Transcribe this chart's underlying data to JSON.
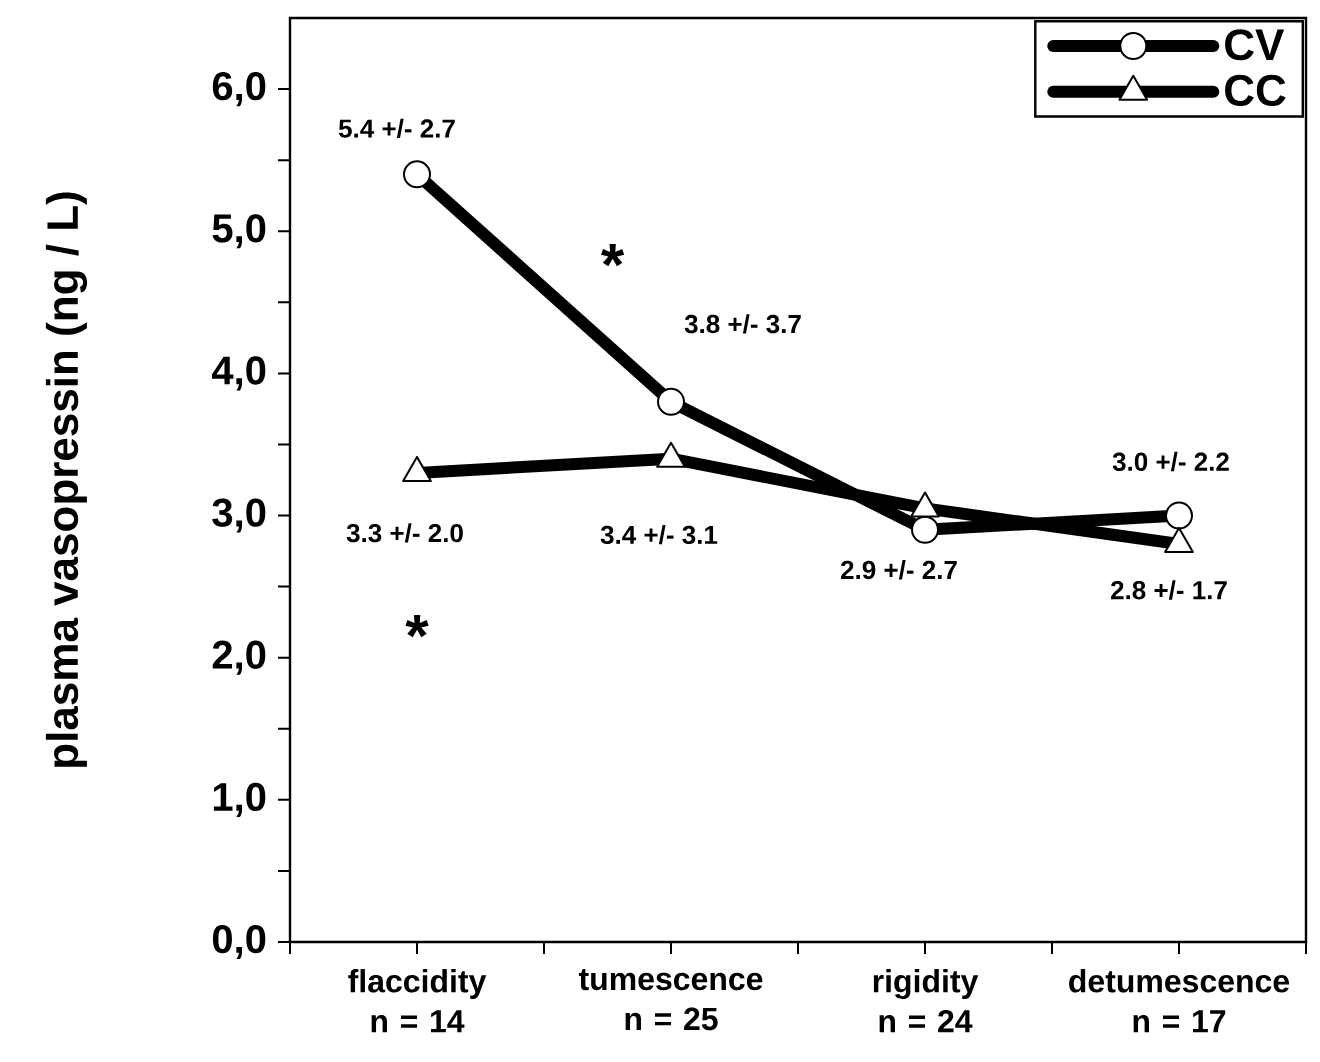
{
  "chart_data": {
    "type": "line",
    "ylabel": "plasma vasopressin (ng / L)",
    "categories": [
      "flaccidity n = 14",
      "tumescence n = 25",
      "rigidity n = 24",
      "detumescence n = 17"
    ],
    "series": [
      {
        "name": "CV",
        "color": "#000000",
        "marker": "circle",
        "values": [
          5.4,
          3.8,
          2.9,
          3.0
        ],
        "value_labels": [
          "5.4 +/- 2.7",
          "3.8 +/- 3.7",
          "2.9 +/- 2.7",
          "3.0 +/- 2.2"
        ]
      },
      {
        "name": "CC",
        "color": "#000000",
        "marker": "triangle",
        "values": [
          3.3,
          3.4,
          3.05,
          2.8
        ],
        "value_labels": [
          "3.3 +/- 2.0",
          "3.4 +/- 3.1",
          null,
          "2.8 +/- 1.7"
        ]
      }
    ],
    "ylim": [
      0,
      6.5
    ],
    "yticks": [
      {
        "value": 0,
        "label": "0,0"
      },
      {
        "value": 0.5,
        "label": null
      },
      {
        "value": 1,
        "label": "1,0"
      },
      {
        "value": 1.5,
        "label": null
      },
      {
        "value": 2,
        "label": "2,0"
      },
      {
        "value": 2.5,
        "label": null
      },
      {
        "value": 3,
        "label": "3,0"
      },
      {
        "value": 3.5,
        "label": null
      },
      {
        "value": 4,
        "label": "4,0"
      },
      {
        "value": 4.5,
        "label": null
      },
      {
        "value": 5,
        "label": "5,0"
      },
      {
        "value": 5.5,
        "label": null
      },
      {
        "value": 6,
        "label": "6,0"
      }
    ],
    "annotations": [
      "*",
      "*"
    ],
    "legend": "top right",
    "grid": false
  }
}
